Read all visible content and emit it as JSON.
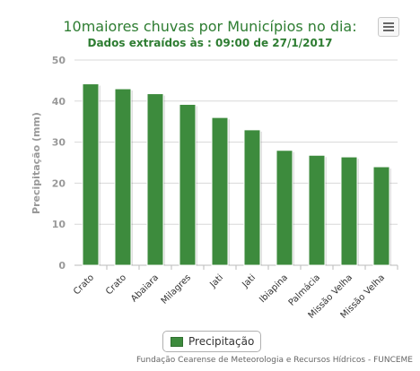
{
  "chart": {
    "title": "10maiores chuvas por Municípios no dia:",
    "subtitle": "Dados extraídos às : 09:00 de 27/1/2017",
    "credits": "Fundação Cearense de Meteorologia e Recursos Hídricos - FUNCEME",
    "menu_icon": "hamburger-menu-icon",
    "colors": {
      "bar": "#3d8b3d",
      "bar_border": "#2f6f2f",
      "title": "#2e7d32",
      "axis_text": "#999999"
    }
  },
  "chart_data": {
    "type": "bar",
    "title": "10maiores chuvas por Municípios no dia:",
    "subtitle": "Dados extraídos às : 09:00 de 27/1/2017",
    "xlabel": "",
    "ylabel": "Precipitação (mm)",
    "ylim": [
      0,
      50
    ],
    "yticks": [
      0,
      10,
      20,
      30,
      40,
      50
    ],
    "grid": true,
    "legend_position": "bottom-center",
    "categories": [
      "Crato",
      "Crato",
      "Abaiara",
      "Milagres",
      "Jati",
      "Jati",
      "Ibiapina",
      "Palmácia",
      "Missão Velha",
      "Missão Velha"
    ],
    "series": [
      {
        "name": "Precipitação",
        "values": [
          44.2,
          43.0,
          41.8,
          39.2,
          36.0,
          33.0,
          28.0,
          26.8,
          26.4,
          24.0
        ]
      }
    ]
  }
}
